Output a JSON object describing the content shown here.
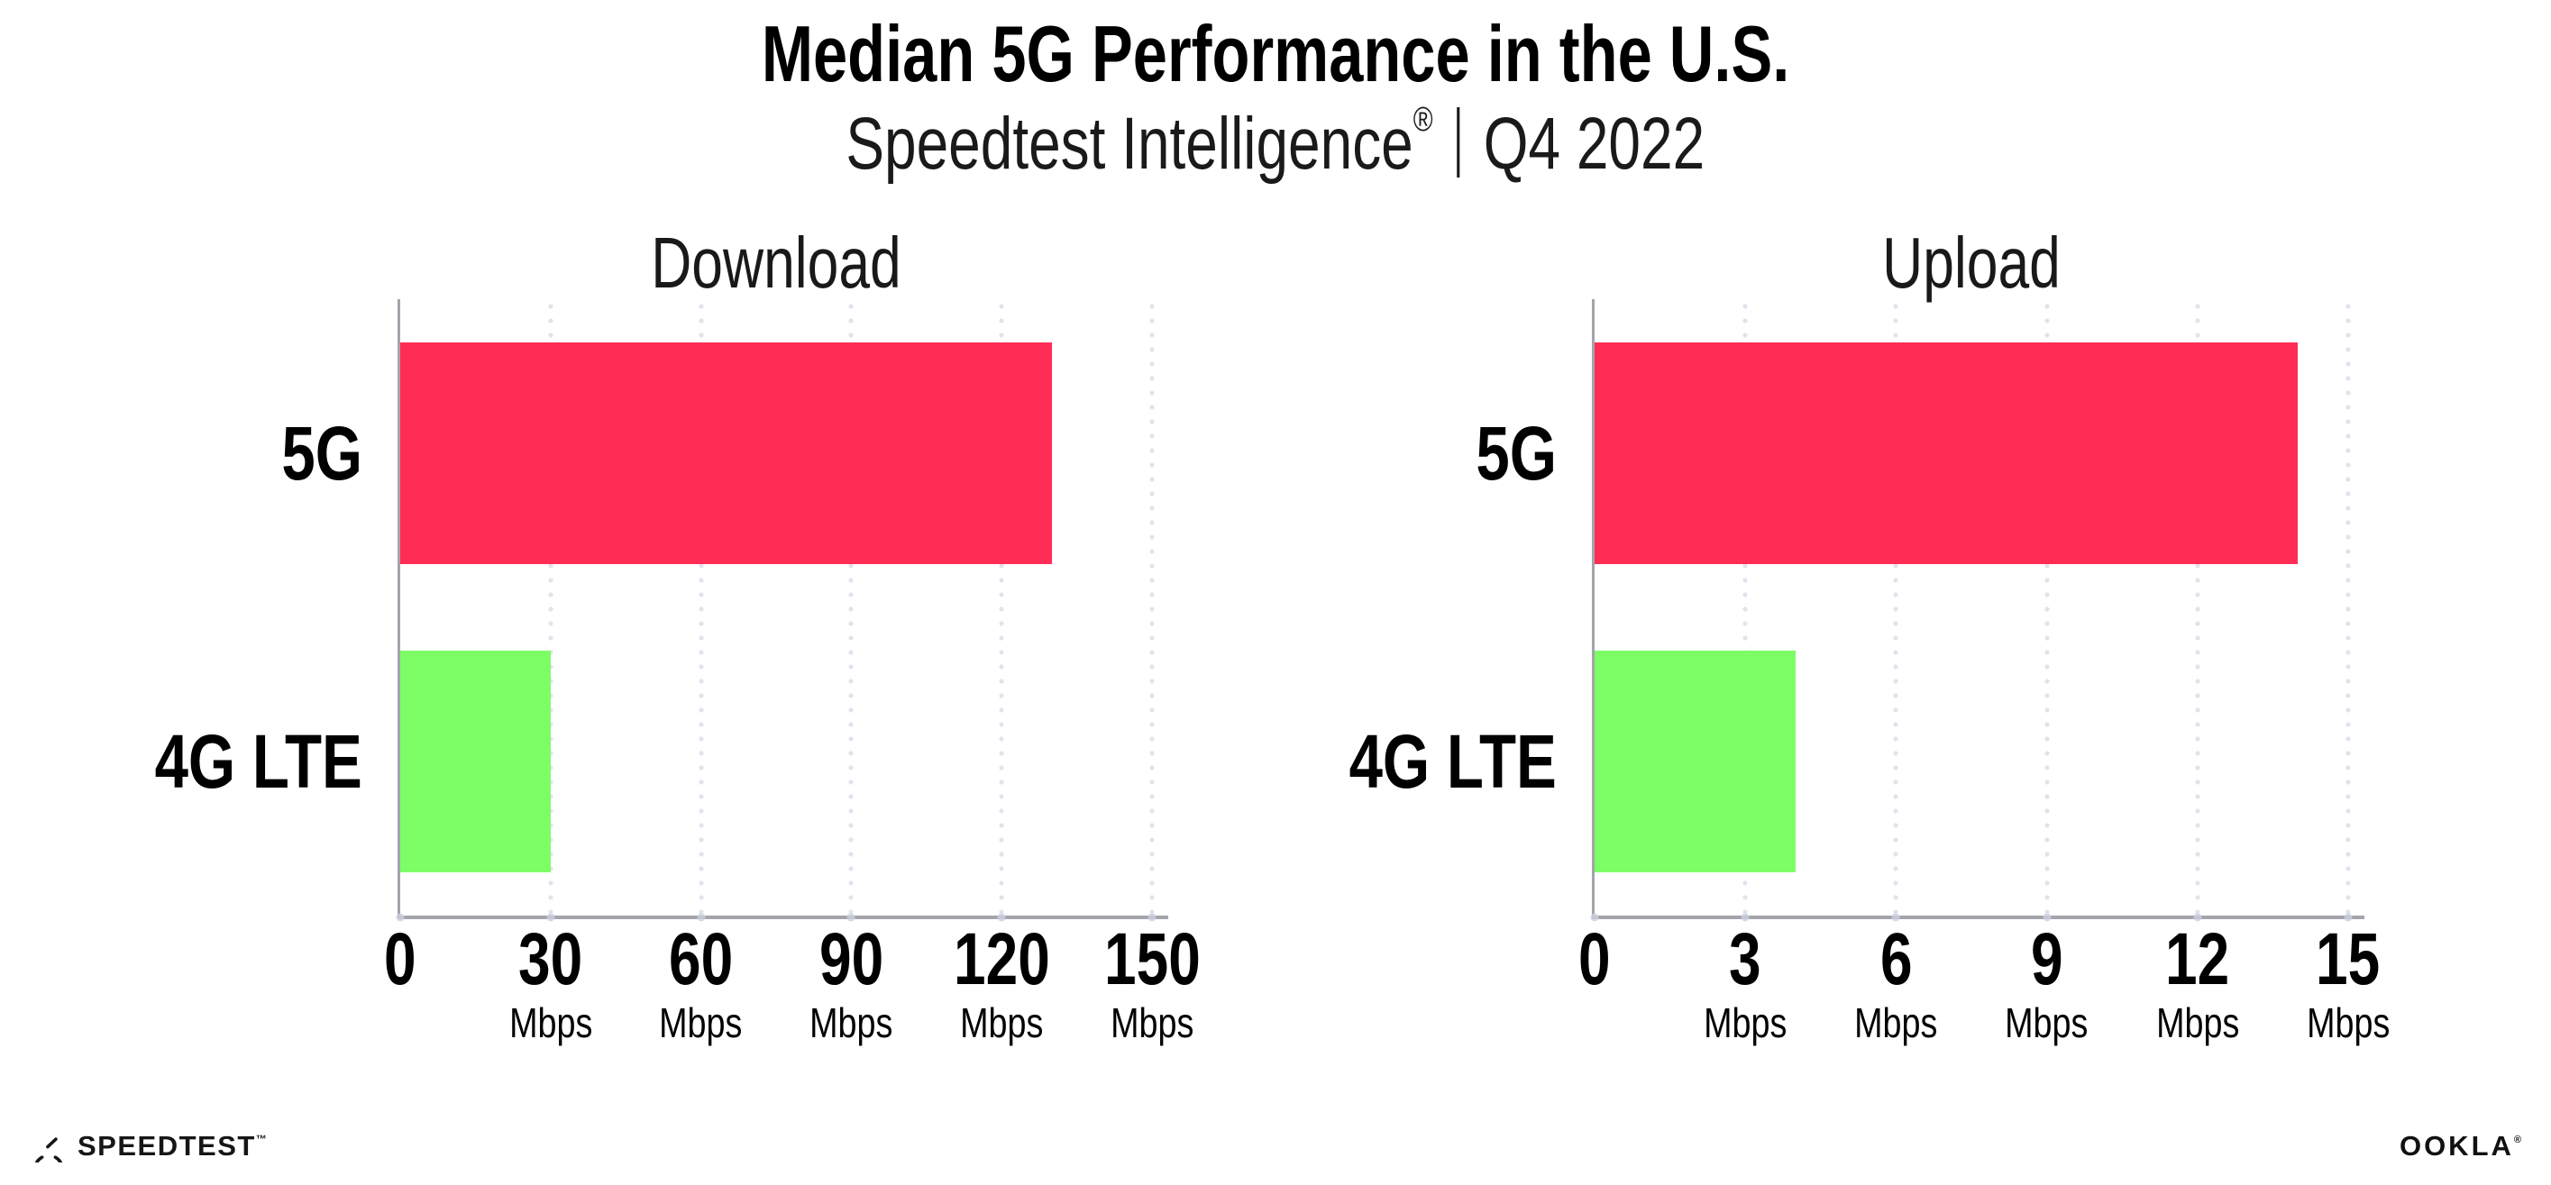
{
  "header": {
    "title": "Median 5G Performance in the U.S.",
    "subtitle_brand": "Speedtest Intelligence",
    "subtitle_reg": "®",
    "subtitle_period": "Q4 2022"
  },
  "colors": {
    "bar_5g": "#ff2d55",
    "bar_4g_lte": "#7dfe66",
    "axis": "#a4a4ac",
    "gridline_dots": "#e1e2ed",
    "title_text": "#000000",
    "secondary_text": "#191919"
  },
  "chart_data": [
    {
      "type": "bar",
      "orientation": "horizontal",
      "title": "Download",
      "categories": [
        "5G",
        "4G LTE"
      ],
      "values": [
        130,
        30
      ],
      "unit": "Mbps",
      "xlim": [
        0,
        150
      ],
      "xticks": [
        0,
        30,
        60,
        90,
        120,
        150
      ],
      "grid": "dotted vertical gridlines at each tick",
      "legend": "none",
      "bar_colors": [
        "#ff2d55",
        "#7dfe66"
      ]
    },
    {
      "type": "bar",
      "orientation": "horizontal",
      "title": "Upload",
      "categories": [
        "5G",
        "4G LTE"
      ],
      "values": [
        14,
        4
      ],
      "unit": "Mbps",
      "xlim": [
        0,
        15
      ],
      "xticks": [
        0,
        3,
        6,
        9,
        12,
        15
      ],
      "grid": "dotted vertical gridlines at each tick",
      "legend": "none",
      "bar_colors": [
        "#ff2d55",
        "#7dfe66"
      ]
    }
  ],
  "footer": {
    "speedtest_label": "SPEEDTEST",
    "speedtest_tm": "™",
    "ookla_label": "OOKLA",
    "ookla_reg": "®"
  }
}
